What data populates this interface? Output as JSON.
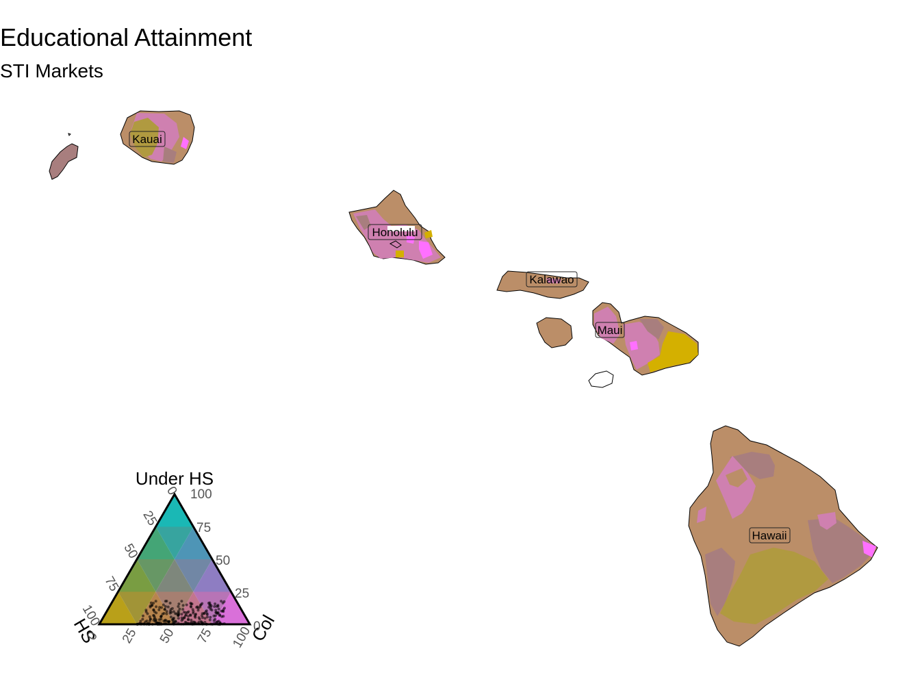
{
  "title": "Educational Attainment",
  "subtitle": "STI Markets",
  "markets": [
    {
      "name": "Kauai"
    },
    {
      "name": "Honolulu"
    },
    {
      "name": "Kalawao"
    },
    {
      "name": "Maui"
    },
    {
      "name": "Hawaii"
    }
  ],
  "legend": {
    "axis_top": "Under HS",
    "axis_left": "HS",
    "axis_right": "Col",
    "ticks": [
      "0",
      "25",
      "50",
      "75",
      "100"
    ]
  },
  "colors": {
    "hs": "#d4b000",
    "under_hs": "#00d0d0",
    "col": "#ff70ff",
    "mixed_tan": "#bb8e68",
    "mixed_pink": "#cf80b0",
    "mixed_olive": "#b09a40",
    "mixed_mauve": "#a87e7e"
  }
}
